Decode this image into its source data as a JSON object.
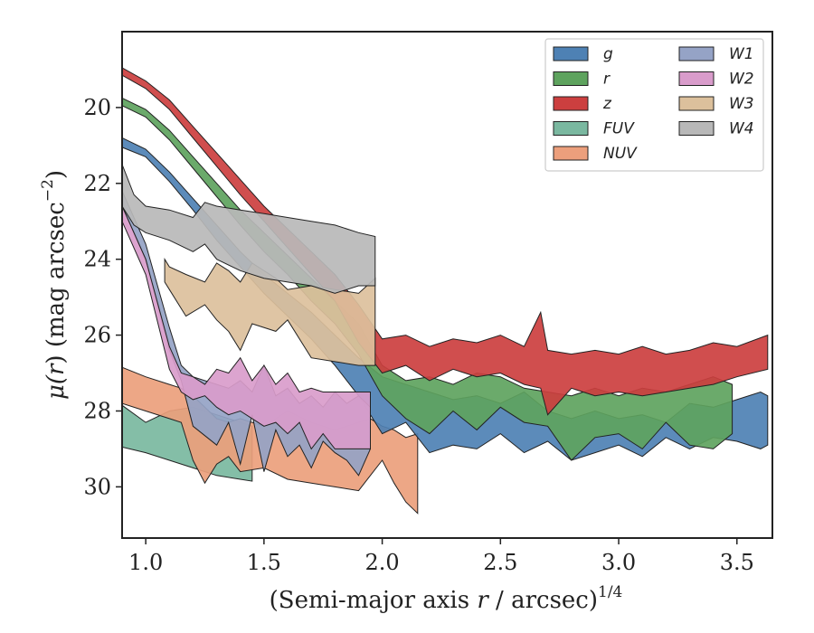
{
  "chart_data": {
    "type": "area",
    "title": "",
    "xlabel": "(Semi-major axis r / arcsec)^{1/4}",
    "xlabel_main": "(Semi-major axis ",
    "xlabel_var": "r",
    "xlabel_rest": " / arcsec)",
    "xlabel_sup": "1/4",
    "ylabel": "μ(r) (mag arcsec^-2)",
    "ylabel_mu": "μ(",
    "ylabel_var": "r",
    "ylabel_rest": ") (mag arcsec",
    "ylabel_sup": "−2",
    "ylabel_close": ")",
    "xlim": [
      0.9,
      3.65
    ],
    "ylim": [
      31.35,
      18.0
    ],
    "y_inverted": true,
    "grid": false,
    "legend_position": "upper-right",
    "legend_columns": 2,
    "x_ticks": [
      1.0,
      1.5,
      2.0,
      2.5,
      3.0,
      3.5
    ],
    "x_tick_labels": [
      "1.0",
      "1.5",
      "2.0",
      "2.5",
      "3.0",
      "3.5"
    ],
    "y_ticks": [
      20,
      22,
      24,
      26,
      28,
      30
    ],
    "y_tick_labels": [
      "20",
      "22",
      "24",
      "26",
      "28",
      "30"
    ],
    "series": [
      {
        "name": "FUV",
        "color": "#7ab8a0",
        "bands": [
          {
            "x": 0.9,
            "lo": 27.85,
            "hi": 28.95
          },
          {
            "x": 1.0,
            "lo": 28.3,
            "hi": 29.1
          },
          {
            "x": 1.1,
            "lo": 28.0,
            "hi": 29.3
          },
          {
            "x": 1.2,
            "lo": 27.9,
            "hi": 29.5
          },
          {
            "x": 1.3,
            "lo": 28.1,
            "hi": 29.7
          },
          {
            "x": 1.4,
            "lo": 28.3,
            "hi": 29.8
          },
          {
            "x": 1.45,
            "lo": 28.4,
            "hi": 29.85
          }
        ]
      },
      {
        "name": "NUV",
        "color": "#ec9f7c",
        "bands": [
          {
            "x": 0.9,
            "lo": 26.85,
            "hi": 27.8
          },
          {
            "x": 1.0,
            "lo": 27.1,
            "hi": 28.0
          },
          {
            "x": 1.1,
            "lo": 27.3,
            "hi": 28.2
          },
          {
            "x": 1.15,
            "lo": 27.4,
            "hi": 28.3
          },
          {
            "x": 1.2,
            "lo": 27.6,
            "hi": 29.3
          },
          {
            "x": 1.25,
            "lo": 27.9,
            "hi": 29.9
          },
          {
            "x": 1.3,
            "lo": 28.2,
            "hi": 29.4
          },
          {
            "x": 1.35,
            "lo": 28.3,
            "hi": 29.2
          },
          {
            "x": 1.4,
            "lo": 28.2,
            "hi": 29.6
          },
          {
            "x": 1.5,
            "lo": 28.4,
            "hi": 29.5
          },
          {
            "x": 1.6,
            "lo": 28.0,
            "hi": 29.8
          },
          {
            "x": 1.7,
            "lo": 28.3,
            "hi": 29.9
          },
          {
            "x": 1.8,
            "lo": 28.5,
            "hi": 30.0
          },
          {
            "x": 1.9,
            "lo": 28.3,
            "hi": 30.1
          },
          {
            "x": 1.95,
            "lo": 28.2,
            "hi": 29.7
          },
          {
            "x": 2.0,
            "lo": 28.4,
            "hi": 29.3
          },
          {
            "x": 2.05,
            "lo": 28.5,
            "hi": 29.9
          },
          {
            "x": 2.1,
            "lo": 28.7,
            "hi": 30.4
          },
          {
            "x": 2.15,
            "lo": 28.6,
            "hi": 30.7
          }
        ]
      },
      {
        "name": "g",
        "color": "#4e81b4",
        "bands": [
          {
            "x": 0.9,
            "lo": 20.8,
            "hi": 21.05
          },
          {
            "x": 1.0,
            "lo": 21.1,
            "hi": 21.3
          },
          {
            "x": 1.1,
            "lo": 21.7,
            "hi": 21.95
          },
          {
            "x": 1.2,
            "lo": 22.4,
            "hi": 22.7
          },
          {
            "x": 1.3,
            "lo": 23.1,
            "hi": 23.5
          },
          {
            "x": 1.4,
            "lo": 23.8,
            "hi": 24.2
          },
          {
            "x": 1.5,
            "lo": 24.4,
            "hi": 24.9
          },
          {
            "x": 1.6,
            "lo": 24.9,
            "hi": 25.5
          },
          {
            "x": 1.7,
            "lo": 25.4,
            "hi": 26.1
          },
          {
            "x": 1.8,
            "lo": 26.0,
            "hi": 26.8
          },
          {
            "x": 1.9,
            "lo": 26.6,
            "hi": 27.6
          },
          {
            "x": 2.0,
            "lo": 27.1,
            "hi": 28.6
          },
          {
            "x": 2.1,
            "lo": 27.3,
            "hi": 28.3
          },
          {
            "x": 2.2,
            "lo": 27.5,
            "hi": 29.1
          },
          {
            "x": 2.3,
            "lo": 27.7,
            "hi": 28.9
          },
          {
            "x": 2.4,
            "lo": 27.6,
            "hi": 29.0
          },
          {
            "x": 2.5,
            "lo": 27.8,
            "hi": 28.6
          },
          {
            "x": 2.6,
            "lo": 27.5,
            "hi": 29.1
          },
          {
            "x": 2.7,
            "lo": 28.0,
            "hi": 28.8
          },
          {
            "x": 2.8,
            "lo": 28.2,
            "hi": 29.3
          },
          {
            "x": 2.9,
            "lo": 28.0,
            "hi": 29.1
          },
          {
            "x": 3.0,
            "lo": 28.2,
            "hi": 28.9
          },
          {
            "x": 3.1,
            "lo": 28.1,
            "hi": 29.2
          },
          {
            "x": 3.2,
            "lo": 28.3,
            "hi": 28.7
          },
          {
            "x": 3.3,
            "lo": 27.8,
            "hi": 29.0
          },
          {
            "x": 3.4,
            "lo": 27.9,
            "hi": 28.7
          },
          {
            "x": 3.5,
            "lo": 27.7,
            "hi": 28.8
          },
          {
            "x": 3.6,
            "lo": 27.5,
            "hi": 29.0
          },
          {
            "x": 3.63,
            "lo": 27.6,
            "hi": 28.9
          }
        ]
      },
      {
        "name": "r",
        "color": "#5ea35e",
        "bands": [
          {
            "x": 0.9,
            "lo": 19.75,
            "hi": 19.95
          },
          {
            "x": 1.0,
            "lo": 20.05,
            "hi": 20.25
          },
          {
            "x": 1.1,
            "lo": 20.6,
            "hi": 20.85
          },
          {
            "x": 1.2,
            "lo": 21.3,
            "hi": 21.6
          },
          {
            "x": 1.3,
            "lo": 22.0,
            "hi": 22.35
          },
          {
            "x": 1.4,
            "lo": 22.7,
            "hi": 23.1
          },
          {
            "x": 1.5,
            "lo": 23.3,
            "hi": 23.8
          },
          {
            "x": 1.6,
            "lo": 23.9,
            "hi": 24.4
          },
          {
            "x": 1.7,
            "lo": 24.5,
            "hi": 25.1
          },
          {
            "x": 1.8,
            "lo": 25.1,
            "hi": 25.7
          },
          {
            "x": 1.9,
            "lo": 25.7,
            "hi": 26.5
          },
          {
            "x": 2.0,
            "lo": 26.8,
            "hi": 27.6
          },
          {
            "x": 2.1,
            "lo": 27.2,
            "hi": 28.2
          },
          {
            "x": 2.2,
            "lo": 27.1,
            "hi": 28.6
          },
          {
            "x": 2.3,
            "lo": 27.3,
            "hi": 28.0
          },
          {
            "x": 2.4,
            "lo": 27.0,
            "hi": 28.5
          },
          {
            "x": 2.5,
            "lo": 27.1,
            "hi": 27.9
          },
          {
            "x": 2.6,
            "lo": 27.4,
            "hi": 28.3
          },
          {
            "x": 2.7,
            "lo": 27.5,
            "hi": 28.4
          },
          {
            "x": 2.8,
            "lo": 27.6,
            "hi": 29.3
          },
          {
            "x": 2.9,
            "lo": 27.4,
            "hi": 28.7
          },
          {
            "x": 3.0,
            "lo": 27.6,
            "hi": 28.6
          },
          {
            "x": 3.1,
            "lo": 27.4,
            "hi": 29.0
          },
          {
            "x": 3.2,
            "lo": 27.5,
            "hi": 28.3
          },
          {
            "x": 3.3,
            "lo": 27.3,
            "hi": 28.9
          },
          {
            "x": 3.4,
            "lo": 27.1,
            "hi": 29.0
          },
          {
            "x": 3.48,
            "lo": 27.3,
            "hi": 28.6
          }
        ]
      },
      {
        "name": "z",
        "color": "#cc3f3f",
        "bands": [
          {
            "x": 0.9,
            "lo": 18.95,
            "hi": 19.15
          },
          {
            "x": 1.0,
            "lo": 19.3,
            "hi": 19.5
          },
          {
            "x": 1.1,
            "lo": 19.8,
            "hi": 20.05
          },
          {
            "x": 1.2,
            "lo": 20.5,
            "hi": 20.8
          },
          {
            "x": 1.3,
            "lo": 21.2,
            "hi": 21.55
          },
          {
            "x": 1.4,
            "lo": 21.9,
            "hi": 22.3
          },
          {
            "x": 1.5,
            "lo": 22.6,
            "hi": 23.0
          },
          {
            "x": 1.6,
            "lo": 23.2,
            "hi": 23.7
          },
          {
            "x": 1.7,
            "lo": 23.8,
            "hi": 24.4
          },
          {
            "x": 1.8,
            "lo": 24.4,
            "hi": 25.1
          },
          {
            "x": 1.9,
            "lo": 25.2,
            "hi": 26.2
          },
          {
            "x": 2.0,
            "lo": 26.1,
            "hi": 27.0
          },
          {
            "x": 2.1,
            "lo": 26.0,
            "hi": 26.8
          },
          {
            "x": 2.2,
            "lo": 26.3,
            "hi": 27.2
          },
          {
            "x": 2.3,
            "lo": 26.1,
            "hi": 26.9
          },
          {
            "x": 2.4,
            "lo": 26.2,
            "hi": 27.1
          },
          {
            "x": 2.5,
            "lo": 26.0,
            "hi": 27.0
          },
          {
            "x": 2.6,
            "lo": 26.3,
            "hi": 27.3
          },
          {
            "x": 2.67,
            "lo": 25.4,
            "hi": 27.4
          },
          {
            "x": 2.7,
            "lo": 26.4,
            "hi": 28.1
          },
          {
            "x": 2.8,
            "lo": 26.5,
            "hi": 27.4
          },
          {
            "x": 2.9,
            "lo": 26.4,
            "hi": 27.6
          },
          {
            "x": 3.0,
            "lo": 26.5,
            "hi": 27.5
          },
          {
            "x": 3.1,
            "lo": 26.3,
            "hi": 27.6
          },
          {
            "x": 3.2,
            "lo": 26.5,
            "hi": 27.5
          },
          {
            "x": 3.3,
            "lo": 26.4,
            "hi": 27.4
          },
          {
            "x": 3.4,
            "lo": 26.2,
            "hi": 27.3
          },
          {
            "x": 3.5,
            "lo": 26.3,
            "hi": 27.1
          },
          {
            "x": 3.63,
            "lo": 26.0,
            "hi": 26.9
          }
        ]
      },
      {
        "name": "W1",
        "color": "#95a3c6",
        "bands": [
          {
            "x": 0.9,
            "lo": 22.2,
            "hi": 22.6
          },
          {
            "x": 1.0,
            "lo": 23.6,
            "hi": 24.0
          },
          {
            "x": 1.1,
            "lo": 25.8,
            "hi": 26.4
          },
          {
            "x": 1.15,
            "lo": 26.8,
            "hi": 27.2
          },
          {
            "x": 1.2,
            "lo": 27.1,
            "hi": 28.4
          },
          {
            "x": 1.3,
            "lo": 27.3,
            "hi": 28.9
          },
          {
            "x": 1.35,
            "lo": 27.4,
            "hi": 28.3
          },
          {
            "x": 1.4,
            "lo": 27.2,
            "hi": 29.4
          },
          {
            "x": 1.45,
            "lo": 27.5,
            "hi": 28.1
          },
          {
            "x": 1.5,
            "lo": 26.8,
            "hi": 29.6
          },
          {
            "x": 1.55,
            "lo": 27.6,
            "hi": 28.5
          },
          {
            "x": 1.6,
            "lo": 27.4,
            "hi": 29.2
          },
          {
            "x": 1.65,
            "lo": 27.8,
            "hi": 28.9
          },
          {
            "x": 1.7,
            "lo": 27.6,
            "hi": 29.5
          },
          {
            "x": 1.75,
            "lo": 27.9,
            "hi": 28.8
          },
          {
            "x": 1.8,
            "lo": 27.5,
            "hi": 29.1
          },
          {
            "x": 1.85,
            "lo": 27.8,
            "hi": 29.3
          },
          {
            "x": 1.9,
            "lo": 27.6,
            "hi": 29.7
          },
          {
            "x": 1.95,
            "lo": 27.9,
            "hi": 29.0
          }
        ]
      },
      {
        "name": "W2",
        "color": "#d99ccb",
        "bands": [
          {
            "x": 0.9,
            "lo": 22.6,
            "hi": 23.0
          },
          {
            "x": 1.0,
            "lo": 24.0,
            "hi": 24.4
          },
          {
            "x": 1.1,
            "lo": 26.3,
            "hi": 26.9
          },
          {
            "x": 1.15,
            "lo": 27.0,
            "hi": 27.5
          },
          {
            "x": 1.2,
            "lo": 27.1,
            "hi": 27.7
          },
          {
            "x": 1.25,
            "lo": 27.3,
            "hi": 27.6
          },
          {
            "x": 1.3,
            "lo": 26.9,
            "hi": 27.9
          },
          {
            "x": 1.35,
            "lo": 27.0,
            "hi": 28.1
          },
          {
            "x": 1.4,
            "lo": 26.6,
            "hi": 28.0
          },
          {
            "x": 1.45,
            "lo": 27.2,
            "hi": 28.2
          },
          {
            "x": 1.5,
            "lo": 26.8,
            "hi": 28.4
          },
          {
            "x": 1.55,
            "lo": 27.3,
            "hi": 28.3
          },
          {
            "x": 1.6,
            "lo": 27.0,
            "hi": 28.6
          },
          {
            "x": 1.65,
            "lo": 27.5,
            "hi": 28.3
          },
          {
            "x": 1.7,
            "lo": 27.4,
            "hi": 29.0
          },
          {
            "x": 1.75,
            "lo": 27.5,
            "hi": 28.6
          },
          {
            "x": 1.8,
            "lo": 27.5,
            "hi": 29.0
          },
          {
            "x": 1.85,
            "lo": 27.5,
            "hi": 29.0
          },
          {
            "x": 1.9,
            "lo": 27.5,
            "hi": 29.0
          },
          {
            "x": 1.95,
            "lo": 27.5,
            "hi": 29.0
          }
        ]
      },
      {
        "name": "W3",
        "color": "#dcc09c",
        "bands": [
          {
            "x": 1.08,
            "lo": 24.0,
            "hi": 24.6
          },
          {
            "x": 1.1,
            "lo": 24.2,
            "hi": 24.8
          },
          {
            "x": 1.17,
            "lo": 24.4,
            "hi": 25.5
          },
          {
            "x": 1.25,
            "lo": 24.6,
            "hi": 25.2
          },
          {
            "x": 1.3,
            "lo": 24.1,
            "hi": 25.6
          },
          {
            "x": 1.35,
            "lo": 24.3,
            "hi": 25.9
          },
          {
            "x": 1.4,
            "lo": 24.6,
            "hi": 26.4
          },
          {
            "x": 1.45,
            "lo": 24.1,
            "hi": 25.7
          },
          {
            "x": 1.55,
            "lo": 24.5,
            "hi": 25.9
          },
          {
            "x": 1.6,
            "lo": 24.8,
            "hi": 25.6
          },
          {
            "x": 1.7,
            "lo": 24.7,
            "hi": 26.6
          },
          {
            "x": 1.8,
            "lo": 24.8,
            "hi": 26.7
          },
          {
            "x": 1.9,
            "lo": 24.9,
            "hi": 26.8
          },
          {
            "x": 1.97,
            "lo": 24.5,
            "hi": 26.8
          }
        ]
      },
      {
        "name": "W4",
        "color": "#b8b8b8",
        "bands": [
          {
            "x": 0.9,
            "lo": 21.5,
            "hi": 22.6
          },
          {
            "x": 0.95,
            "lo": 22.3,
            "hi": 23.1
          },
          {
            "x": 1.0,
            "lo": 22.6,
            "hi": 23.3
          },
          {
            "x": 1.1,
            "lo": 22.7,
            "hi": 23.5
          },
          {
            "x": 1.2,
            "lo": 22.9,
            "hi": 23.8
          },
          {
            "x": 1.25,
            "lo": 22.5,
            "hi": 23.6
          },
          {
            "x": 1.3,
            "lo": 22.6,
            "hi": 24.0
          },
          {
            "x": 1.4,
            "lo": 22.7,
            "hi": 24.3
          },
          {
            "x": 1.5,
            "lo": 22.8,
            "hi": 24.5
          },
          {
            "x": 1.6,
            "lo": 22.9,
            "hi": 24.6
          },
          {
            "x": 1.7,
            "lo": 23.0,
            "hi": 24.7
          },
          {
            "x": 1.8,
            "lo": 23.1,
            "hi": 24.9
          },
          {
            "x": 1.9,
            "lo": 23.3,
            "hi": 24.7
          },
          {
            "x": 1.97,
            "lo": 23.4,
            "hi": 24.7
          }
        ]
      }
    ],
    "legend_order": [
      "g",
      "r",
      "z",
      "FUV",
      "NUV",
      "W1",
      "W2",
      "W3",
      "W4"
    ]
  }
}
